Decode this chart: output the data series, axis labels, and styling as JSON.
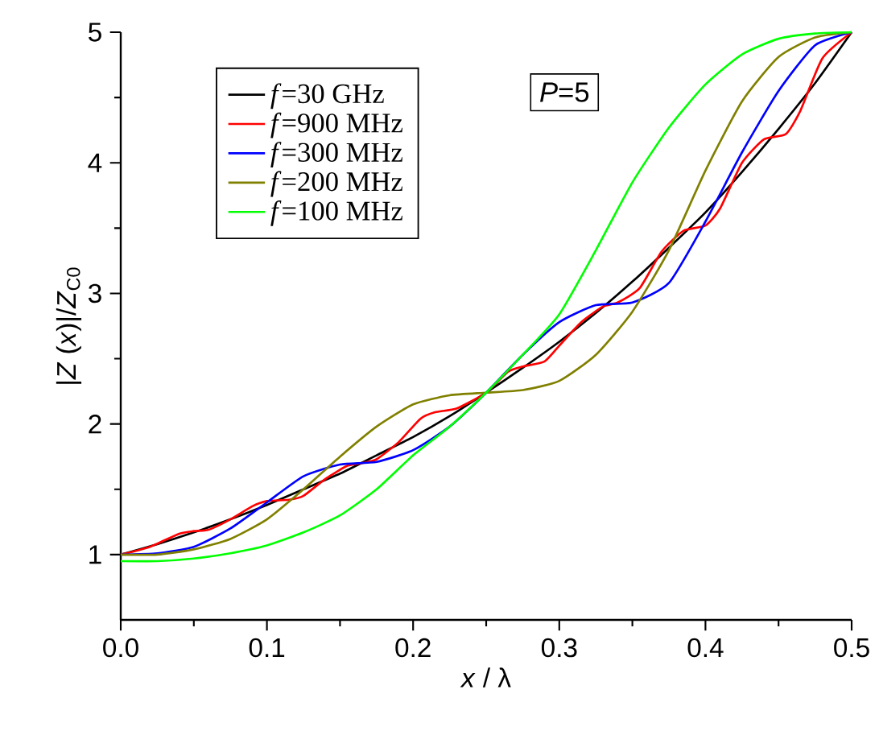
{
  "chart_data": {
    "type": "line",
    "xlabel": "*x* / λ",
    "ylabel": "|*Z* (*x*)|/*Z*$_{C0}$",
    "xlim": [
      0,
      0.5
    ],
    "ylim": [
      0.5,
      5
    ],
    "xticks": [
      {
        "value": 0,
        "label": "0.0"
      },
      0.1,
      0.2,
      0.3,
      0.4,
      0.5
    ],
    "yticks": [
      1,
      2,
      3,
      4,
      5
    ],
    "grid": false,
    "legend": "top left",
    "line_style": "solid",
    "marker": "none",
    "annotations": [
      "*P*=5"
    ],
    "x": [
      0,
      0.025,
      0.05,
      0.075,
      0.1,
      0.125,
      0.15,
      0.175,
      0.2,
      0.225,
      0.25,
      0.275,
      0.3,
      0.325,
      0.35,
      0.375,
      0.4,
      0.425,
      0.45,
      0.475,
      0.5
    ],
    "series": [
      {
        "name": "*f*=30 GHz",
        "color": "#000000",
        "values": [
          1.0,
          1.08,
          1.17,
          1.27,
          1.38,
          1.5,
          1.62,
          1.76,
          1.9,
          2.06,
          2.24,
          2.43,
          2.63,
          2.85,
          3.09,
          3.35,
          3.62,
          3.93,
          4.26,
          4.61,
          5.0
        ]
      },
      {
        "name": "*f*=900 MHz",
        "color": "#ff0000",
        "x": [
          0,
          0.02,
          0.04,
          0.05,
          0.06,
          0.075,
          0.09,
          0.1,
          0.115,
          0.125,
          0.14,
          0.155,
          0.165,
          0.175,
          0.19,
          0.205,
          0.215,
          0.23,
          0.25,
          0.265,
          0.275,
          0.29,
          0.3,
          0.315,
          0.33,
          0.34,
          0.355,
          0.37,
          0.385,
          0.4,
          0.41,
          0.425,
          0.44,
          0.455,
          0.465,
          0.48,
          0.5
        ],
        "values": [
          1.0,
          1.06,
          1.16,
          1.18,
          1.19,
          1.27,
          1.37,
          1.41,
          1.42,
          1.45,
          1.58,
          1.68,
          1.7,
          1.73,
          1.86,
          2.04,
          2.09,
          2.12,
          2.24,
          2.4,
          2.44,
          2.48,
          2.6,
          2.78,
          2.9,
          2.93,
          3.04,
          3.32,
          3.48,
          3.52,
          3.65,
          4.0,
          4.18,
          4.22,
          4.4,
          4.8,
          5.0
        ]
      },
      {
        "name": "*f*=300 MHz",
        "color": "#0000ff",
        "values": [
          1.0,
          1.01,
          1.06,
          1.2,
          1.4,
          1.6,
          1.69,
          1.71,
          1.8,
          1.98,
          2.24,
          2.53,
          2.78,
          2.91,
          2.93,
          3.08,
          3.55,
          4.08,
          4.55,
          4.9,
          5.0
        ]
      },
      {
        "name": "*f*=200 MHz",
        "color": "#808000",
        "values": [
          1.0,
          1.0,
          1.04,
          1.12,
          1.27,
          1.5,
          1.75,
          1.98,
          2.15,
          2.22,
          2.24,
          2.26,
          2.33,
          2.53,
          2.86,
          3.33,
          3.94,
          4.47,
          4.81,
          4.96,
          5.0
        ]
      },
      {
        "name": "*f*=100 MHz",
        "color": "#00ff00",
        "values": [
          0.95,
          0.95,
          0.97,
          1.01,
          1.07,
          1.17,
          1.3,
          1.5,
          1.76,
          1.98,
          2.24,
          2.53,
          2.84,
          3.33,
          3.85,
          4.27,
          4.6,
          4.83,
          4.95,
          4.99,
          5.0
        ]
      }
    ]
  }
}
